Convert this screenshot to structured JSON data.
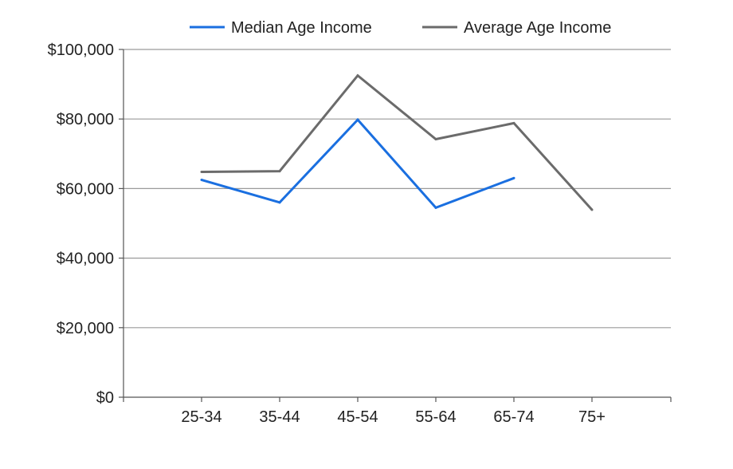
{
  "chart_data": {
    "type": "line",
    "title": "",
    "xlabel": "",
    "ylabel": "",
    "categories": [
      "25-34",
      "35-44",
      "45-54",
      "55-64",
      "65-74",
      "75+"
    ],
    "ylim": [
      0,
      100000
    ],
    "yticks": [
      0,
      20000,
      40000,
      60000,
      80000,
      100000
    ],
    "ytick_labels": [
      "$0",
      "$20,000",
      "$40,000",
      "$60,000",
      "$80,000",
      "$100,000"
    ],
    "grid": true,
    "legend_position": "top",
    "series": [
      {
        "name": "Median Age Income",
        "color": "#1a6fe0",
        "values": [
          62500,
          56000,
          79800,
          54500,
          63000,
          null
        ]
      },
      {
        "name": "Average Age Income",
        "color": "#6b6b6b",
        "values": [
          64800,
          65000,
          92500,
          74200,
          78800,
          53900
        ]
      }
    ]
  }
}
